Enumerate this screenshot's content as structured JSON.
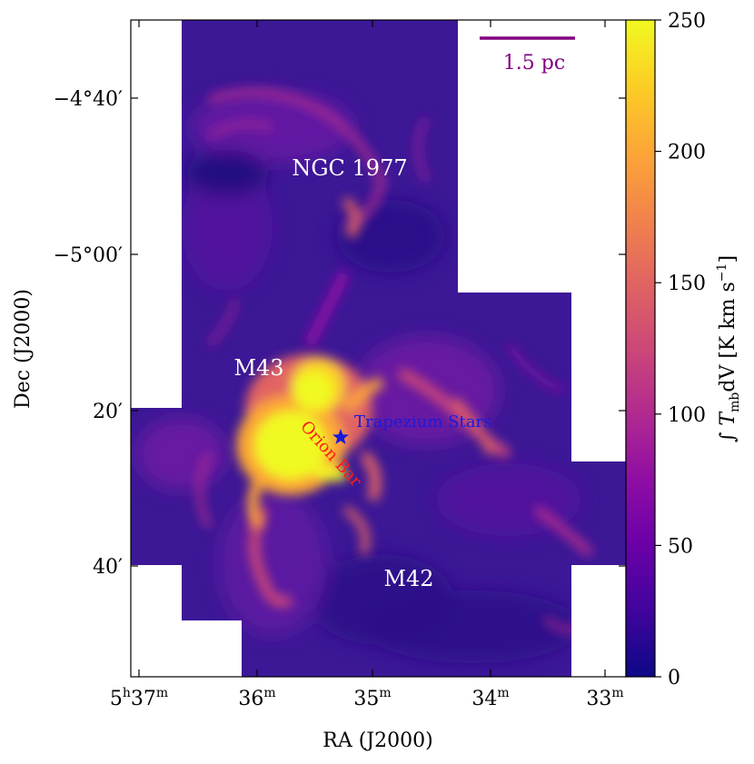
{
  "chart_data": {
    "type": "heatmap",
    "xlabel": "RA (J2000)",
    "ylabel": "Dec (J2000)",
    "colorbar_label": "∫ T_mb dV [K km s⁻¹]",
    "colorbar_range": [
      0,
      250
    ],
    "colorbar_ticks": [
      "0",
      "50",
      "100",
      "150",
      "200",
      "250"
    ],
    "colormap": "plasma",
    "x_ticks": [
      {
        "h": "5",
        "hu": "h",
        "m": "37",
        "mu": "m"
      },
      {
        "m": "36",
        "mu": "m"
      },
      {
        "m": "35",
        "mu": "m"
      },
      {
        "m": "34",
        "mu": "m"
      },
      {
        "m": "33",
        "mu": "m"
      }
    ],
    "y_ticks": [
      "−4°40′",
      "−5°00′",
      "20′",
      "40′"
    ],
    "annotations": {
      "ngc1977": "NGC 1977",
      "m43": "M43",
      "m42": "M42",
      "trapezium": "Trapezium Stars",
      "orion_bar": "Orion Bar",
      "scalebar": "1.5 pc"
    },
    "colors": {
      "scalebar": "#800080",
      "trapezium": "#1a1adb",
      "orion_bar": "#ff1a1a",
      "low": "#0d0887",
      "high": "#f0f921"
    }
  }
}
